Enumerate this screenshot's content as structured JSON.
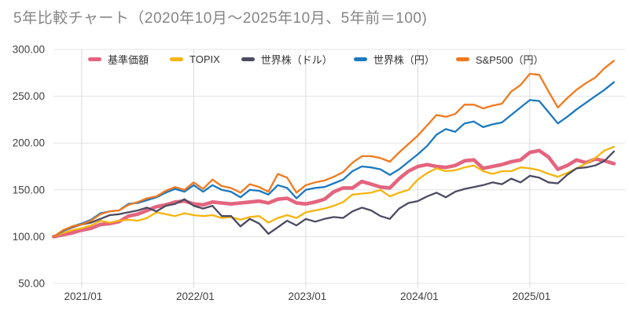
{
  "title": "5年比較チャート（2020年10月～2025年10月、5年前＝100)",
  "colors": {
    "background": "#ffffff",
    "title_text": "#858585",
    "tick_text": "#404040",
    "legend_text": "#333333",
    "h_gridline": "#e3e3e3",
    "v_gridline": "#d8d8d8"
  },
  "chart_data": {
    "type": "line",
    "title": "5年比較チャート（2020年10月～2025年10月、5年前＝100)",
    "baseline_note": "5年前＝100",
    "x_start": "2020/10",
    "x_end": "2025/10",
    "ylim": [
      50,
      300
    ],
    "grid": true,
    "legend_position": "top",
    "y_ticks": {
      "values": [
        300,
        250,
        200,
        150,
        100,
        50
      ],
      "labels": [
        "300.00",
        "250.00",
        "200.00",
        "150.00",
        "100.00",
        "50.00"
      ]
    },
    "x_ticks": [
      {
        "label": "2021/01",
        "index": 3
      },
      {
        "label": "2022/01",
        "index": 15
      },
      {
        "label": "2023/01",
        "index": 27
      },
      {
        "label": "2024/01",
        "index": 39
      },
      {
        "label": "2025/01",
        "index": 51
      }
    ],
    "categories": [
      "2020/10",
      "2020/11",
      "2020/12",
      "2021/01",
      "2021/02",
      "2021/03",
      "2021/04",
      "2021/05",
      "2021/06",
      "2021/07",
      "2021/08",
      "2021/09",
      "2021/10",
      "2021/11",
      "2021/12",
      "2022/01",
      "2022/02",
      "2022/03",
      "2022/04",
      "2022/05",
      "2022/06",
      "2022/07",
      "2022/08",
      "2022/09",
      "2022/10",
      "2022/11",
      "2022/12",
      "2023/01",
      "2023/02",
      "2023/03",
      "2023/04",
      "2023/05",
      "2023/06",
      "2023/07",
      "2023/08",
      "2023/09",
      "2023/10",
      "2023/11",
      "2023/12",
      "2024/01",
      "2024/02",
      "2024/03",
      "2024/04",
      "2024/05",
      "2024/06",
      "2024/07",
      "2024/08",
      "2024/09",
      "2024/10",
      "2024/11",
      "2024/12",
      "2025/01",
      "2025/02",
      "2025/03",
      "2025/04",
      "2025/05",
      "2025/06",
      "2025/07",
      "2025/08",
      "2025/09",
      "2025/10"
    ],
    "series": [
      {
        "name": "基準価額",
        "color": "#e4647e",
        "width": 4.6,
        "values": [
          100,
          102,
          104,
          107,
          109,
          113,
          114,
          116,
          122,
          124,
          128,
          132,
          134,
          137,
          138,
          135,
          134,
          137,
          136,
          135,
          136,
          137,
          138,
          136,
          140,
          141,
          136,
          135,
          137,
          140,
          148,
          152,
          152,
          159,
          156,
          153,
          152,
          162,
          170,
          175,
          177,
          175,
          174,
          176,
          181,
          182,
          173,
          175,
          177,
          180,
          182,
          190,
          192,
          185,
          172,
          176,
          182,
          179,
          183,
          181,
          178
        ]
      },
      {
        "name": "TOPIX",
        "color": "#f6b40e",
        "width": 2.3,
        "values": [
          100,
          104,
          107,
          109,
          112,
          117,
          115,
          117,
          118,
          117,
          120,
          126,
          124,
          122,
          125,
          123,
          122,
          123,
          120,
          121,
          118,
          121,
          122,
          115,
          120,
          123,
          120,
          126,
          128,
          130,
          133,
          137,
          145,
          146,
          147,
          150,
          143,
          147,
          150,
          161,
          168,
          173,
          170,
          171,
          174,
          176,
          170,
          167,
          170,
          170,
          174,
          173,
          171,
          167,
          164,
          168,
          173,
          178,
          184,
          192,
          196
        ]
      },
      {
        "name": "世界株（ドル）",
        "color": "#4c4b63",
        "width": 2.3,
        "values": [
          100,
          106,
          110,
          113,
          115,
          119,
          123,
          124,
          126,
          128,
          131,
          127,
          133,
          135,
          140,
          133,
          130,
          133,
          122,
          122,
          111,
          119,
          114,
          103,
          110,
          117,
          112,
          119,
          116,
          119,
          121,
          120,
          127,
          131,
          128,
          122,
          119,
          130,
          136,
          138,
          143,
          147,
          142,
          148,
          151,
          153,
          155,
          158,
          156,
          162,
          158,
          165,
          163,
          158,
          157,
          166,
          173,
          174,
          176,
          181,
          191
        ]
      },
      {
        "name": "世界株（円）",
        "color": "#1b79c0",
        "width": 2.3,
        "values": [
          100,
          106,
          111,
          114,
          118,
          125,
          127,
          128,
          135,
          136,
          139,
          142,
          147,
          151,
          148,
          155,
          148,
          155,
          150,
          148,
          142,
          150,
          149,
          145,
          155,
          152,
          141,
          150,
          152,
          153,
          157,
          161,
          170,
          175,
          174,
          172,
          166,
          172,
          180,
          188,
          197,
          209,
          215,
          212,
          221,
          223,
          217,
          220,
          222,
          230,
          238,
          246,
          245,
          233,
          221,
          228,
          236,
          243,
          250,
          257,
          265
        ]
      },
      {
        "name": "S&P500（円）",
        "color": "#f2791e",
        "width": 2.3,
        "values": [
          100,
          107,
          111,
          113,
          117,
          124,
          127,
          128,
          134,
          137,
          141,
          143,
          149,
          153,
          150,
          158,
          151,
          161,
          154,
          152,
          147,
          156,
          153,
          148,
          167,
          163,
          147,
          155,
          158,
          160,
          164,
          169,
          179,
          186,
          186,
          184,
          180,
          190,
          199,
          208,
          219,
          230,
          228,
          231,
          241,
          241,
          237,
          240,
          242,
          255,
          262,
          274,
          273,
          255,
          238,
          248,
          257,
          264,
          270,
          280,
          288
        ]
      }
    ]
  }
}
